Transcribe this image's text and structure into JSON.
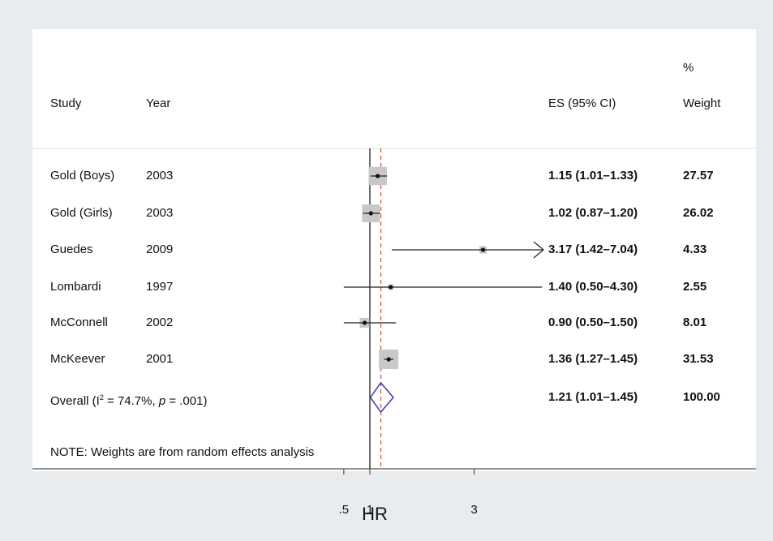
{
  "header": {
    "study": "Study",
    "year": "Year",
    "es": "ES (95% CI)",
    "weight_pct": "%",
    "weight": "Weight"
  },
  "overall": {
    "label_prefix": "Overall  (I",
    "label_sup": "2",
    "label_mid": " = 74.7%, ",
    "label_p": "p",
    "label_end": " = .001)",
    "es_text": "1.21 (1.01–1.45)",
    "weight_text": "100.00"
  },
  "note": "NOTE: Weights are from random effects analysis",
  "colors": {
    "diamond": "#3a3aa8",
    "ref_line": "#d9534f",
    "box": "#c8c8c8",
    "line": "#222222"
  },
  "chart_data": {
    "type": "forest",
    "xlabel": "HR",
    "xticks": [
      {
        "value": 0.5,
        "label": ".5"
      },
      {
        "value": 1,
        "label": "1"
      },
      {
        "value": 3,
        "label": "3"
      }
    ],
    "xlim": [
      0.5,
      3.4
    ],
    "null_line": 1,
    "overall_line": 1.21,
    "studies": [
      {
        "study": "Gold (Boys)",
        "year": "2003",
        "hr": 1.15,
        "lo": 1.01,
        "hi": 1.33,
        "es_text": "1.15 (1.01–1.33)",
        "weight": 27.57,
        "weight_text": "27.57"
      },
      {
        "study": "Gold (Girls)",
        "year": "2003",
        "hr": 1.02,
        "lo": 0.87,
        "hi": 1.2,
        "es_text": "1.02 (0.87–1.20)",
        "weight": 26.02,
        "weight_text": "26.02"
      },
      {
        "study": "Guedes",
        "year": "2009",
        "hr": 3.17,
        "lo": 1.42,
        "hi": 7.04,
        "es_text": "3.17 (1.42–7.04)",
        "weight": 4.33,
        "weight_text": "4.33"
      },
      {
        "study": "Lombardi",
        "year": "1997",
        "hr": 1.4,
        "lo": 0.5,
        "hi": 4.3,
        "es_text": "1.40 (0.50–4.30)",
        "weight": 2.55,
        "weight_text": "2.55"
      },
      {
        "study": "McConnell",
        "year": "2002",
        "hr": 0.9,
        "lo": 0.5,
        "hi": 1.5,
        "es_text": "0.90 (0.50–1.50)",
        "weight": 8.01,
        "weight_text": "8.01"
      },
      {
        "study": "McKeever",
        "year": "2001",
        "hr": 1.36,
        "lo": 1.27,
        "hi": 1.45,
        "es_text": "1.36 (1.27–1.45)",
        "weight": 31.53,
        "weight_text": "31.53"
      }
    ],
    "overall_estimate": {
      "hr": 1.21,
      "lo": 1.01,
      "hi": 1.45,
      "weight": 100.0
    }
  }
}
